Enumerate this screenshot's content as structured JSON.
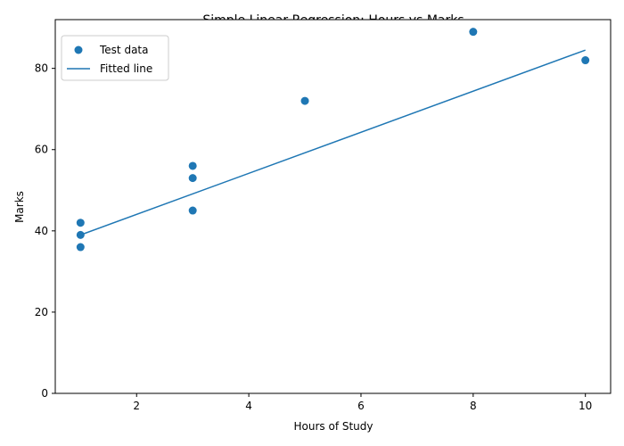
{
  "chart_data": {
    "type": "scatter",
    "title": "Simple Linear Regression: Hours vs Marks",
    "xlabel": "Hours of Study",
    "ylabel": "Marks",
    "xlim": [
      0.55,
      10.45
    ],
    "ylim": [
      0,
      92
    ],
    "xticks": [
      2,
      4,
      6,
      8,
      10
    ],
    "yticks": [
      0,
      20,
      40,
      60,
      80
    ],
    "grid": false,
    "legend_position": "upper left",
    "series": [
      {
        "name": "Test data",
        "kind": "scatter",
        "color": "#1f77b4",
        "points": [
          {
            "x": 1,
            "y": 42
          },
          {
            "x": 1,
            "y": 39
          },
          {
            "x": 1,
            "y": 36
          },
          {
            "x": 3,
            "y": 56
          },
          {
            "x": 3,
            "y": 53
          },
          {
            "x": 3,
            "y": 45
          },
          {
            "x": 5,
            "y": 72
          },
          {
            "x": 8,
            "y": 89
          },
          {
            "x": 10,
            "y": 82
          }
        ]
      },
      {
        "name": "Fitted line",
        "kind": "line",
        "color": "#1f77b4",
        "points": [
          {
            "x": 1,
            "y": 39
          },
          {
            "x": 10,
            "y": 84.5
          }
        ]
      }
    ]
  }
}
